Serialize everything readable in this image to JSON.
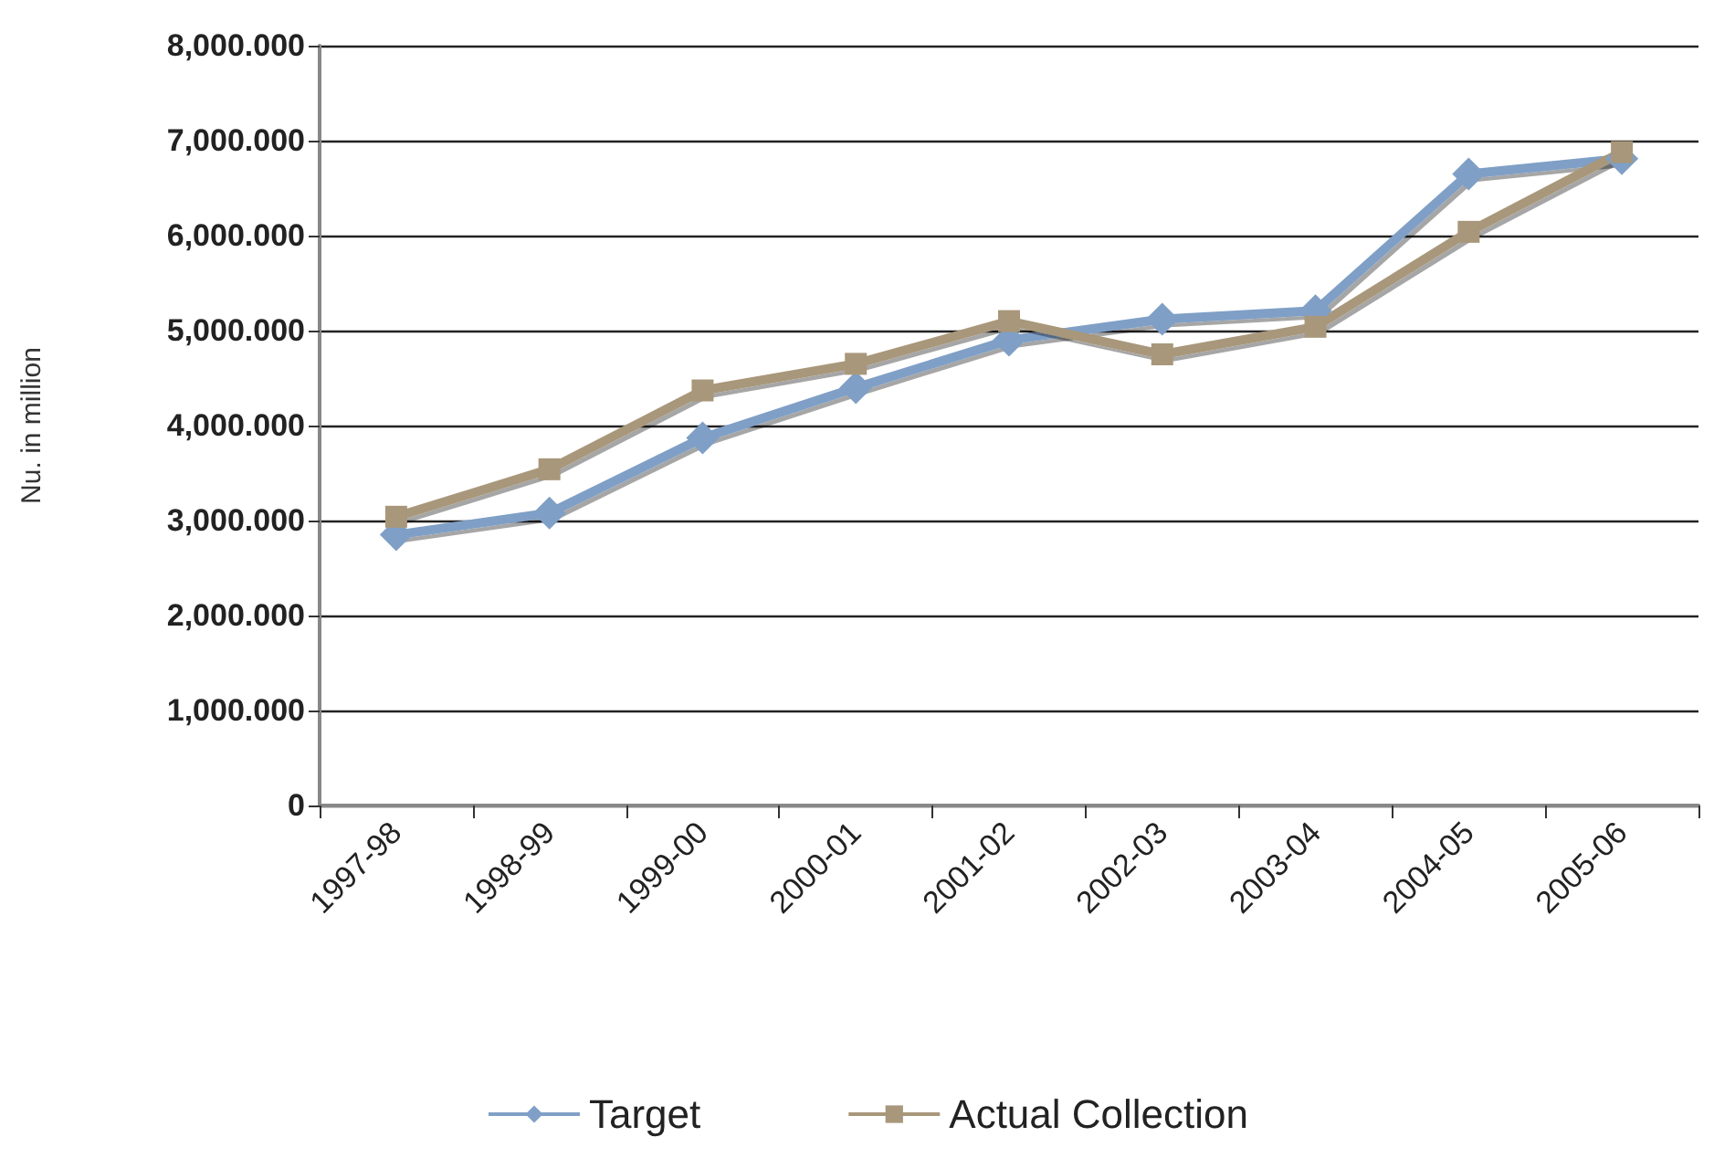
{
  "chart_data": {
    "type": "line",
    "ylabel": "Nu. in million",
    "categories": [
      "1997-98",
      "1998-99",
      "1999-00",
      "2000-01",
      "2001-02",
      "2002-03",
      "2003-04",
      "2004-05",
      "2005-06"
    ],
    "series": [
      {
        "name": "Target",
        "color": "#7f9fc6",
        "marker": "diamond",
        "values": [
          2850,
          3080,
          3870,
          4400,
          4900,
          5120,
          5210,
          6650,
          6810
        ]
      },
      {
        "name": "Actual Collection",
        "color": "#a8977a",
        "marker": "square",
        "values": [
          3040,
          3540,
          4370,
          4650,
          5100,
          4750,
          5040,
          6040,
          6880
        ]
      }
    ],
    "ylim": [
      0,
      8000
    ],
    "yticks": [
      {
        "value": 0,
        "label": "0"
      },
      {
        "value": 1000,
        "label": "1,000.000"
      },
      {
        "value": 2000,
        "label": "2,000.000"
      },
      {
        "value": 3000,
        "label": "3,000.000"
      },
      {
        "value": 4000,
        "label": "4,000.000"
      },
      {
        "value": 5000,
        "label": "5,000.000"
      },
      {
        "value": 6000,
        "label": "6,000.000"
      },
      {
        "value": 7000,
        "label": "7,000.000"
      },
      {
        "value": 8000,
        "label": "8,000.000"
      }
    ],
    "grid": "y",
    "legend": "bottom",
    "line_style": "solid"
  }
}
